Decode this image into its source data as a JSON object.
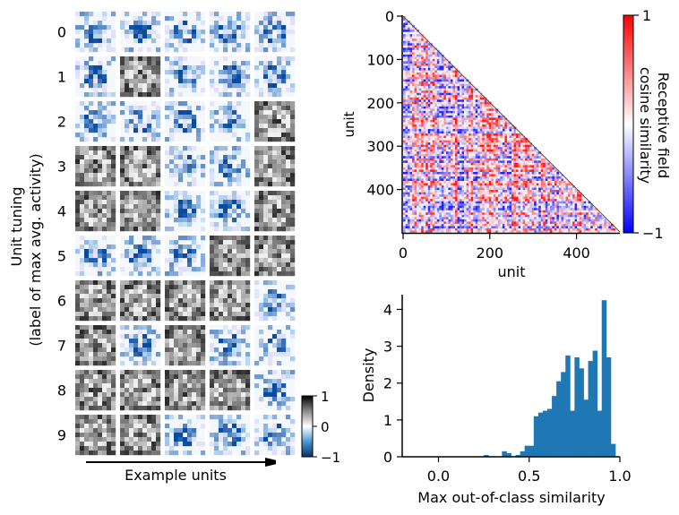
{
  "tiles": {
    "ylabel_line1": "Unit tuning",
    "ylabel_line2": "(label of max avg. activity)",
    "row_labels": [
      "0",
      "1",
      "2",
      "3",
      "4",
      "5",
      "6",
      "7",
      "8",
      "9"
    ],
    "xlabel": "Example units",
    "columns_per_row": 5,
    "gray_tiles": {
      "1": [
        1
      ],
      "2": [
        4
      ],
      "3": [
        0,
        1,
        4
      ],
      "4": [
        0,
        1,
        4
      ],
      "5": [
        3,
        4
      ],
      "6": [
        0,
        1,
        2,
        3
      ],
      "7": [
        0,
        2
      ],
      "8": [
        0,
        1,
        2,
        3
      ],
      "9": [
        0,
        1
      ]
    },
    "colorbar": {
      "ticks": [
        "1",
        "0",
        "−1"
      ],
      "range": [
        -1,
        1
      ],
      "cmap": "blue-white-gray-black"
    }
  },
  "chart_data": [
    {
      "type": "heatmap",
      "description_kind": "lower-triangular similarity matrix",
      "xlabel": "unit",
      "ylabel": "unit",
      "x_ticks": [
        "0",
        "200",
        "400"
      ],
      "y_ticks": [
        "0",
        "100",
        "200",
        "300",
        "400"
      ],
      "xlim": [
        0,
        500
      ],
      "ylim": [
        500,
        0
      ],
      "n_units": 500,
      "colorbar": {
        "label_line1": "Receptive field",
        "label_line2": "cosine similarity",
        "ticks": [
          "1",
          "−1"
        ],
        "range": [
          -1,
          1
        ],
        "cmap": "bwr"
      }
    },
    {
      "type": "bar",
      "subtype": "histogram",
      "xlabel": "Max out-of-class similarity",
      "ylabel": "Density",
      "x_ticks": [
        "0.0",
        "0.5",
        "1.0"
      ],
      "y_ticks": [
        "0",
        "1",
        "2",
        "3",
        "4"
      ],
      "xlim": [
        -0.2,
        1.0
      ],
      "ylim": [
        0,
        4.4
      ],
      "bar_color": "#1f77b4",
      "bin_width": 0.025,
      "bins_left": [
        0.25,
        0.275,
        0.3,
        0.325,
        0.35,
        0.375,
        0.4,
        0.425,
        0.45,
        0.475,
        0.5,
        0.525,
        0.55,
        0.575,
        0.6,
        0.625,
        0.65,
        0.675,
        0.7,
        0.725,
        0.75,
        0.775,
        0.8,
        0.825,
        0.85,
        0.875,
        0.9,
        0.925,
        0.95
      ],
      "values": [
        0.05,
        0,
        0,
        0,
        0.15,
        0.1,
        0,
        0.05,
        0.15,
        0.3,
        0.3,
        1.1,
        1.2,
        1.25,
        1.3,
        1.65,
        2.05,
        2.3,
        2.75,
        1.25,
        2.7,
        2.4,
        1.55,
        2.6,
        2.88,
        1.25,
        4.25,
        2.7,
        0.35
      ]
    }
  ]
}
